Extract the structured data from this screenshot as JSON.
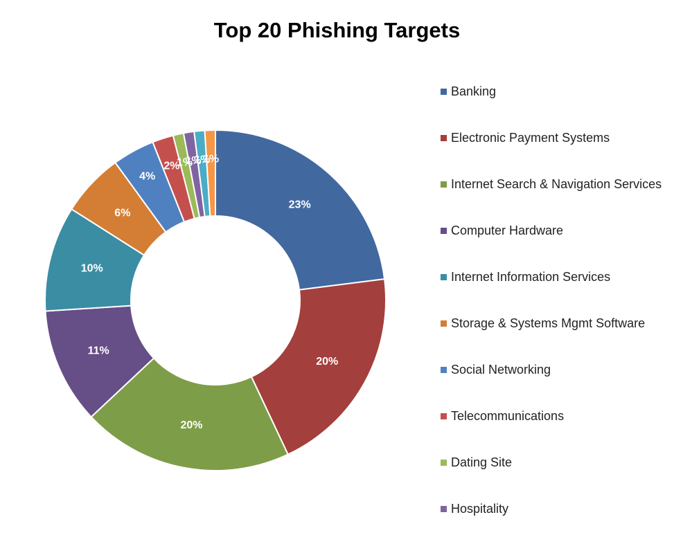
{
  "chart_data": {
    "type": "pie",
    "title": "Top 20 Phishing Targets",
    "legend_position": "right",
    "slices": [
      {
        "name": "Banking",
        "value": 23,
        "label": "23%",
        "color": "#4169A0"
      },
      {
        "name": "Electronic Payment Systems",
        "value": 20,
        "label": "20%",
        "color": "#A33F3C"
      },
      {
        "name": "Internet Search & Navigation Services",
        "value": 20,
        "label": "20%",
        "color": "#7E9D48"
      },
      {
        "name": "Computer Hardware",
        "value": 11,
        "label": "11%",
        "color": "#664E86"
      },
      {
        "name": "Internet Information Services",
        "value": 10,
        "label": "10%",
        "color": "#3A8DA3"
      },
      {
        "name": "Storage & Systems Mgmt Software",
        "value": 6,
        "label": "6%",
        "color": "#D47E35"
      },
      {
        "name": "Social Networking",
        "value": 4,
        "label": "4%",
        "color": "#4F81C1"
      },
      {
        "name": "Telecommunications",
        "value": 2,
        "label": "2%",
        "color": "#C4504D"
      },
      {
        "name": "Dating Site",
        "value": 1,
        "label": "1%",
        "color": "#9BBA59"
      },
      {
        "name": "Hospitality",
        "value": 1,
        "label": "1%",
        "color": "#8064A2"
      },
      {
        "name": "",
        "value": 1,
        "label": "1%",
        "color": "#4BACC6"
      },
      {
        "name": "",
        "value": 1,
        "label": "1%",
        "color": "#F79646"
      }
    ]
  }
}
